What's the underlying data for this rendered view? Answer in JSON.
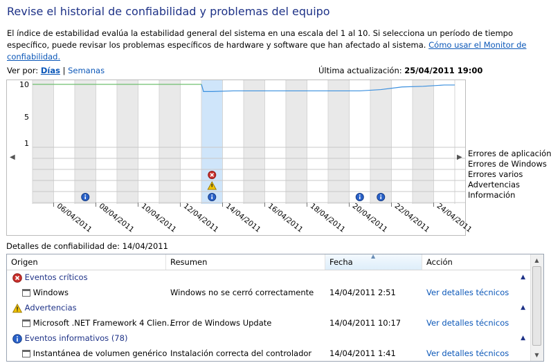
{
  "header": {
    "title": "Revise el historial de confiabilidad y problemas del equipo",
    "intro_text": "El índice de estabilidad evalúa la estabilidad general del sistema en una escala del 1 al 10. Si selecciona un período de tiempo específico, puede revisar los problemas específicos de hardware y software que han afectado al sistema.",
    "help_link": "Cómo usar el Monitor de confiabilidad."
  },
  "view_by": {
    "label": "Ver por:",
    "days": "Días",
    "separator": "|",
    "weeks": "Semanas"
  },
  "last_update": {
    "label": "Última actualización:",
    "value": "25/04/2011 19:00"
  },
  "chart": {
    "y_ticks": [
      "10",
      "5",
      "1"
    ],
    "row_labels": [
      "Errores de aplicación",
      "Errores de Windows",
      "Errores varios",
      "Advertencias",
      "Información"
    ],
    "date_labels": [
      "06/04/2011",
      "08/04/2011",
      "10/04/2011",
      "12/04/2011",
      "14/04/2011",
      "16/04/2011",
      "18/04/2011",
      "20/04/2011",
      "22/04/2011",
      "24/04/2011"
    ],
    "selected_day_index": 8,
    "colors": {
      "selected": "#cfe5fa",
      "stripe": "#e9e9e9",
      "line": "#3a8fde",
      "line_old": "#6fbf6f",
      "grid": "#c8c8c8"
    }
  },
  "chart_data": {
    "type": "line",
    "x": [
      0,
      1,
      2,
      3,
      4,
      5,
      6,
      7,
      8,
      9,
      10,
      11,
      12,
      13,
      14,
      15,
      16,
      17,
      18,
      19
    ],
    "y": [
      10,
      10,
      10,
      10,
      10,
      10,
      10,
      10,
      8.9,
      9.0,
      9.0,
      9.0,
      9.0,
      9.0,
      9.0,
      9.0,
      9.2,
      9.6,
      9.7,
      9.9
    ],
    "ylim": [
      1,
      10
    ],
    "xlabel": "",
    "ylabel": ""
  },
  "events": {
    "info_days": [
      2,
      8,
      15,
      16
    ],
    "warning_days": [
      8
    ],
    "error_days": [
      8
    ]
  },
  "details": {
    "caption": "Detalles de confiabilidad de: 14/04/2011",
    "columns": [
      "Origen",
      "Resumen",
      "Fecha",
      "Acción"
    ],
    "groups": [
      {
        "label": "Eventos críticos",
        "icon": "error-icon"
      },
      {
        "label": "Advertencias",
        "icon": "warning-icon"
      },
      {
        "label": "Eventos informativos (78)",
        "icon": "info-icon"
      }
    ],
    "rows": [
      {
        "origin": "Windows",
        "summary": "Windows no se cerró correctamente",
        "date": "14/04/2011 2:51",
        "action": "Ver detalles técnicos"
      },
      {
        "origin": "Microsoft .NET Framework 4 Clien...",
        "summary": "Error de Windows Update",
        "date": "14/04/2011 10:17",
        "action": "Ver detalles técnicos"
      },
      {
        "origin": "Instantánea de volumen genérico",
        "summary": "Instalación correcta del controlador",
        "date": "14/04/2011 1:41",
        "action": "Ver detalles técnicos"
      }
    ]
  }
}
